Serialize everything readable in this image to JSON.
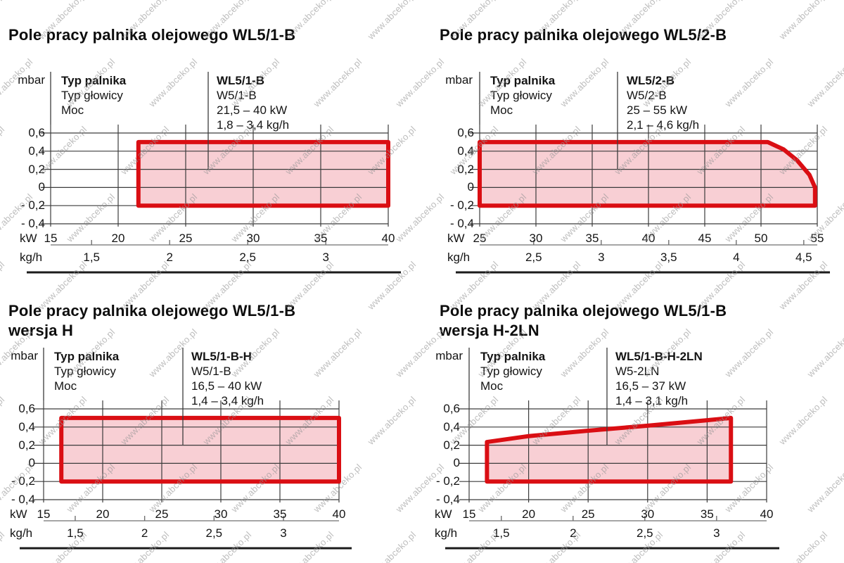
{
  "page": {
    "watermark_text": "www.abceko.pl"
  },
  "colors": {
    "region_stroke": "#da0e13",
    "region_fill": "#f8cfd4",
    "grid": "#3c3c3c",
    "axis2_line": "#707070",
    "separator": "#1b1b1b",
    "text": "#141414",
    "watermark": "#949494"
  },
  "chart_data": [
    {
      "type": "area",
      "title": "Pole pracy palnika olejowego WL5/1-B",
      "subtitle": "",
      "y_label": "mbar",
      "x_label": "kW",
      "x2_label": "kg/h",
      "legend_left": [
        "Typ palnika",
        "Typ głowicy",
        "Moc"
      ],
      "legend_right": [
        "WL5/1-B",
        "W5/1-B",
        "21,5 – 40 kW",
        "1,8 – 3,4 kg/h"
      ],
      "xlim": [
        15,
        40
      ],
      "ylim": [
        -0.4,
        0.6
      ],
      "grid": true,
      "x_ticks": [
        15,
        20,
        25,
        30,
        35,
        40
      ],
      "y_ticks": [
        {
          "v": 0.6,
          "label": "0,6"
        },
        {
          "v": 0.4,
          "label": "0,4"
        },
        {
          "v": 0.2,
          "label": "0,2"
        },
        {
          "v": 0,
          "label": "0"
        },
        {
          "v": -0.2,
          "label": "- 0,2"
        },
        {
          "v": -0.4,
          "label": "- 0,4"
        }
      ],
      "x2_ticks": [
        {
          "v": 1.5,
          "label": "1,5"
        },
        {
          "v": 2,
          "label": "2"
        },
        {
          "v": 2.5,
          "label": "2,5"
        },
        {
          "v": 3,
          "label": "3"
        }
      ],
      "power_map": {
        "kw": [
          21.5,
          40
        ],
        "kgh": [
          1.8,
          3.4
        ]
      },
      "region_kw_mbar": [
        [
          21.5,
          -0.2
        ],
        [
          21.5,
          0.5
        ],
        [
          40,
          0.5
        ],
        [
          40,
          -0.2
        ]
      ]
    },
    {
      "type": "area",
      "title": "Pole pracy palnika olejowego WL5/2-B",
      "subtitle": "",
      "y_label": "mbar",
      "x_label": "kW",
      "x2_label": "kg/h",
      "legend_left": [
        "Typ palnika",
        "Typ głowicy",
        "Moc"
      ],
      "legend_right": [
        "WL5/2-B",
        "W5/2-B",
        "25 – 55 kW",
        "2,1 – 4,6 kg/h"
      ],
      "xlim": [
        25,
        55
      ],
      "ylim": [
        -0.4,
        0.6
      ],
      "grid": true,
      "x_ticks": [
        25,
        30,
        35,
        40,
        45,
        50,
        55
      ],
      "y_ticks": [
        {
          "v": 0.6,
          "label": "0,6"
        },
        {
          "v": 0.4,
          "label": "0,4"
        },
        {
          "v": 0.2,
          "label": "0,2"
        },
        {
          "v": 0,
          "label": "0"
        },
        {
          "v": -0.2,
          "label": "- 0,2"
        },
        {
          "v": -0.4,
          "label": "- 0,4"
        }
      ],
      "x2_ticks": [
        {
          "v": 2.5,
          "label": "2,5"
        },
        {
          "v": 3,
          "label": "3"
        },
        {
          "v": 3.5,
          "label": "3,5"
        },
        {
          "v": 4,
          "label": "4"
        },
        {
          "v": 4.5,
          "label": "4,5"
        }
      ],
      "power_map": {
        "kw": [
          25,
          55
        ],
        "kgh": [
          2.1,
          4.6
        ]
      },
      "region_kw_mbar": [
        [
          25,
          -0.2
        ],
        [
          25,
          0.5
        ],
        [
          50.6,
          0.5
        ],
        [
          52,
          0.42
        ],
        [
          53.2,
          0.3
        ],
        [
          54.3,
          0.14
        ],
        [
          54.8,
          0.0
        ],
        [
          54.8,
          -0.2
        ]
      ]
    },
    {
      "type": "area",
      "title": "Pole pracy palnika olejowego WL5/1-B",
      "subtitle": "wersja H",
      "y_label": "mbar",
      "x_label": "kW",
      "x2_label": "kg/h",
      "legend_left": [
        "Typ palnika",
        "Typ głowicy",
        "Moc"
      ],
      "legend_right": [
        "WL5/1-B-H",
        "W5/1-B",
        "16,5 – 40 kW",
        "1,4 – 3,4 kg/h"
      ],
      "xlim": [
        15,
        40
      ],
      "ylim": [
        -0.4,
        0.6
      ],
      "grid": true,
      "x_ticks": [
        15,
        20,
        25,
        30,
        35,
        40
      ],
      "y_ticks": [
        {
          "v": 0.6,
          "label": "0,6"
        },
        {
          "v": 0.4,
          "label": "0,4"
        },
        {
          "v": 0.2,
          "label": "0,2"
        },
        {
          "v": 0,
          "label": "0"
        },
        {
          "v": -0.2,
          "label": "- 0,2"
        },
        {
          "v": -0.4,
          "label": "- 0,4"
        }
      ],
      "x2_ticks": [
        {
          "v": 1.5,
          "label": "1,5"
        },
        {
          "v": 2,
          "label": "2"
        },
        {
          "v": 2.5,
          "label": "2,5"
        },
        {
          "v": 3,
          "label": "3"
        }
      ],
      "power_map": {
        "kw": [
          16.5,
          40
        ],
        "kgh": [
          1.4,
          3.4
        ]
      },
      "region_kw_mbar": [
        [
          16.5,
          -0.2
        ],
        [
          16.5,
          0.5
        ],
        [
          40,
          0.5
        ],
        [
          40,
          -0.2
        ]
      ]
    },
    {
      "type": "area",
      "title": "Pole pracy palnika olejowego WL5/1-B",
      "subtitle": "wersja H-2LN",
      "y_label": "mbar",
      "x_label": "kW",
      "x2_label": "kg/h",
      "legend_left": [
        "Typ palnika",
        "Typ głowicy",
        "Moc"
      ],
      "legend_right": [
        "WL5/1-B-H-2LN",
        "W5-2LN",
        "16,5 – 37 kW",
        "1,4 – 3,1 kg/h"
      ],
      "xlim": [
        15,
        40
      ],
      "ylim": [
        -0.4,
        0.6
      ],
      "grid": true,
      "x_ticks": [
        15,
        20,
        25,
        30,
        35,
        40
      ],
      "y_ticks": [
        {
          "v": 0.6,
          "label": "0,6"
        },
        {
          "v": 0.4,
          "label": "0,4"
        },
        {
          "v": 0.2,
          "label": "0,2"
        },
        {
          "v": 0,
          "label": "0"
        },
        {
          "v": -0.2,
          "label": "- 0,2"
        },
        {
          "v": -0.4,
          "label": "- 0,4"
        }
      ],
      "x2_ticks": [
        {
          "v": 1.5,
          "label": "1,5"
        },
        {
          "v": 2,
          "label": "2"
        },
        {
          "v": 2.5,
          "label": "2,5"
        },
        {
          "v": 3,
          "label": "3"
        }
      ],
      "power_map": {
        "kw": [
          16.5,
          37
        ],
        "kgh": [
          1.4,
          3.1
        ]
      },
      "region_kw_mbar": [
        [
          16.5,
          -0.2
        ],
        [
          16.5,
          0.235
        ],
        [
          20,
          0.3
        ],
        [
          25,
          0.36
        ],
        [
          30,
          0.415
        ],
        [
          35,
          0.475
        ],
        [
          37,
          0.5
        ],
        [
          37,
          -0.2
        ]
      ]
    }
  ]
}
